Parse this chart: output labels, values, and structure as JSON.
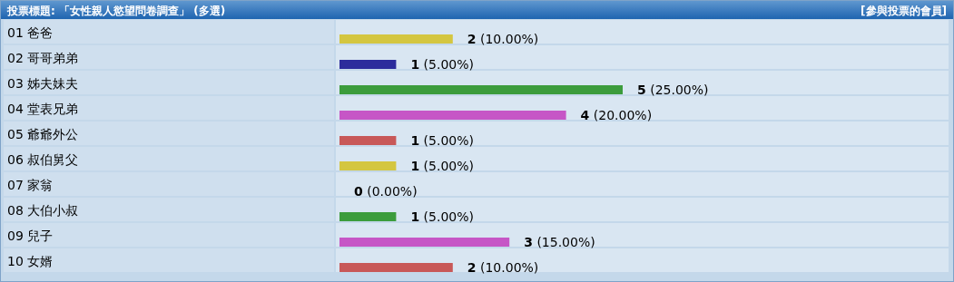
{
  "chart_data": {
    "type": "bar",
    "orientation": "horizontal",
    "title": "投票標題: 「女性親人慾望問卷調查」 (多選)",
    "annotations": [
      "[參與投票的會員]"
    ],
    "categories": [
      "01 爸爸",
      "02 哥哥弟弟",
      "03 姊夫妹夫",
      "04 堂表兄弟",
      "05 爺爺外公",
      "06 叔伯舅父",
      "07 家翁",
      "08 大伯小叔",
      "09 兒子",
      "10 女婿"
    ],
    "values": [
      2,
      1,
      5,
      4,
      1,
      1,
      0,
      1,
      3,
      2
    ],
    "colors": [
      "#d4c640",
      "#2c2c9c",
      "#3c9c3c",
      "#c656c6",
      "#c85858",
      "#d4c640",
      "#2c2c9c",
      "#3c9c3c",
      "#c656c6",
      "#c85858"
    ],
    "value_labels": [
      "2 (10.00%)",
      "1 (5.00%)",
      "5 (25.00%)",
      "4 (20.00%)",
      "1 (5.00%)",
      "1 (5.00%)",
      "0 (0.00%)",
      "1 (5.00%)",
      "3 (15.00%)",
      "2 (10.00%)"
    ]
  }
}
